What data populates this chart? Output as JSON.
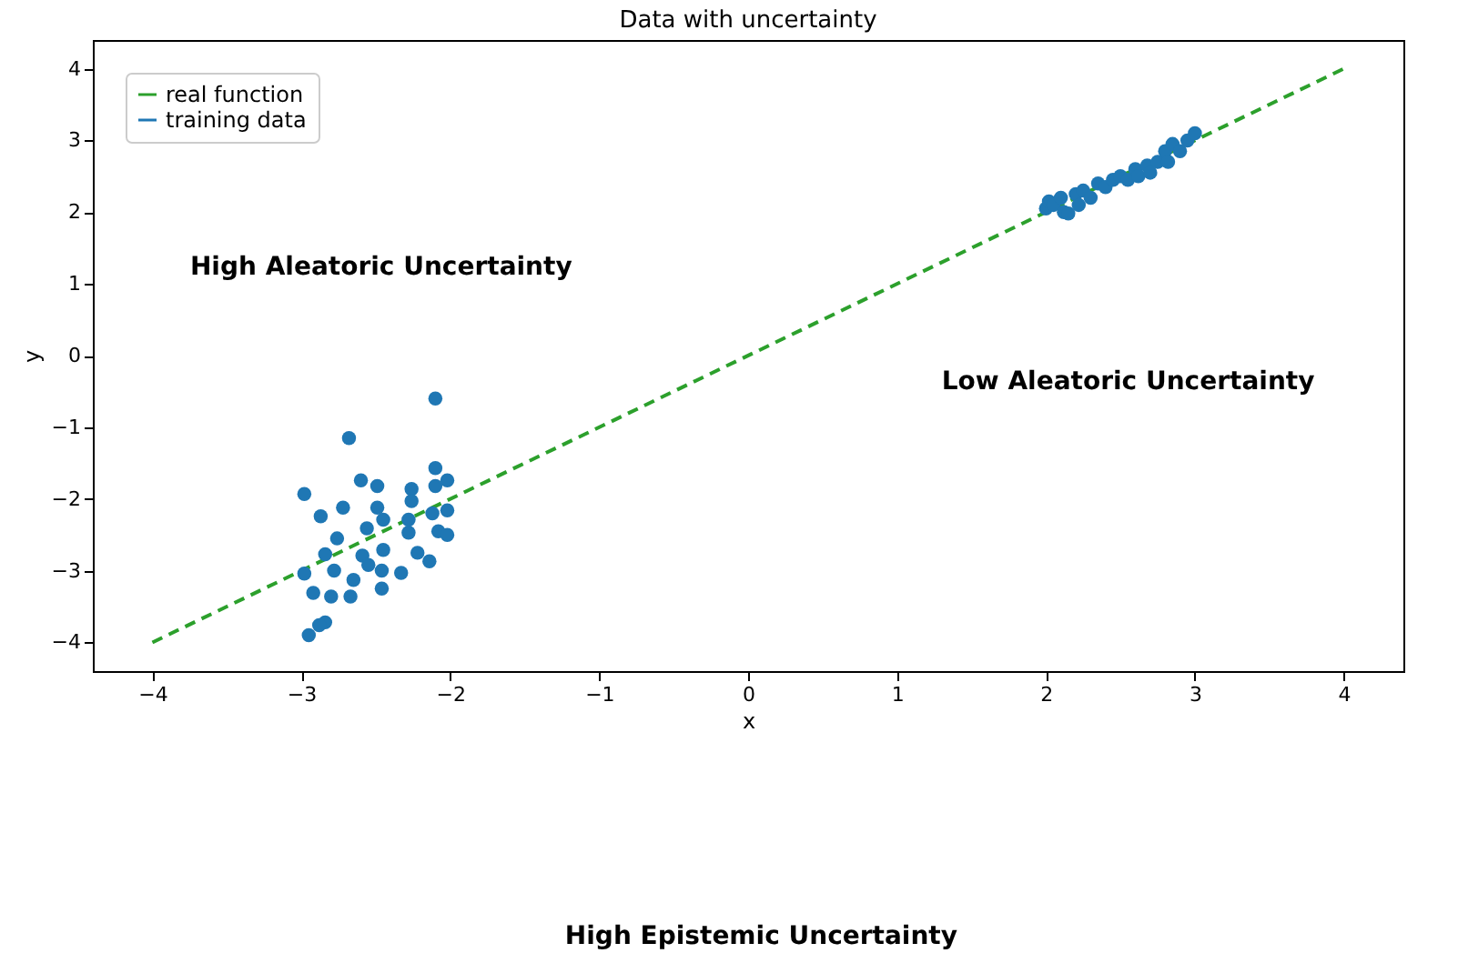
{
  "chart_data": {
    "type": "scatter",
    "title": "Data with uncertainty",
    "xlabel": "x",
    "ylabel": "y",
    "xlim": [
      -4.4,
      4.4
    ],
    "ylim": [
      -4.4,
      4.4
    ],
    "xticks": [
      -4,
      -3,
      -2,
      -1,
      0,
      1,
      2,
      3,
      4
    ],
    "yticks": [
      -4,
      -3,
      -2,
      -1,
      0,
      1,
      2,
      3,
      4
    ],
    "grid": false,
    "legend": "top left",
    "annotations": [
      "High Aleatoric Uncertainty",
      "Low Aleatoric Uncertainty",
      "High Epistemic Uncertainty"
    ],
    "series": [
      {
        "name": "real function",
        "type": "line",
        "color": "#2ca02c",
        "line_style": "dashed",
        "x": [
          -4,
          4
        ],
        "values": [
          -4,
          4
        ]
      },
      {
        "name": "training data",
        "color": "#1f77b4",
        "marker": "circle",
        "x": [
          -2.1,
          -2.68,
          -2.98,
          -2.6,
          -2.49,
          -2.26,
          -2.1,
          -2.1,
          -2.02,
          -2.72,
          -2.87,
          -2.49,
          -2.45,
          -2.26,
          -2.12,
          -2.02,
          -2.28,
          -2.08,
          -2.02,
          -2.56,
          -2.76,
          -2.28,
          -2.84,
          -2.59,
          -2.45,
          -2.22,
          -2.14,
          -2.55,
          -2.78,
          -2.46,
          -2.33,
          -2.98,
          -2.65,
          -2.92,
          -2.8,
          -2.67,
          -2.46,
          -2.84,
          -2.88,
          -2.95,
          2.0,
          2.02,
          2.05,
          2.1,
          2.12,
          2.15,
          2.2,
          2.22,
          2.25,
          2.3,
          2.35,
          2.4,
          2.45,
          2.5,
          2.55,
          2.6,
          2.62,
          2.68,
          2.7,
          2.75,
          2.8,
          2.82,
          2.85,
          2.9,
          2.95,
          3.0
        ],
        "values": [
          -0.6,
          -1.15,
          -1.93,
          -1.74,
          -1.82,
          -1.86,
          -1.57,
          -1.82,
          -1.74,
          -2.12,
          -2.24,
          -2.12,
          -2.29,
          -2.03,
          -2.2,
          -2.16,
          -2.29,
          -2.45,
          -2.5,
          -2.41,
          -2.55,
          -2.47,
          -2.77,
          -2.79,
          -2.71,
          -2.75,
          -2.87,
          -2.92,
          -3.0,
          -3.0,
          -3.03,
          -3.04,
          -3.13,
          -3.31,
          -3.36,
          -3.36,
          -3.25,
          -3.72,
          -3.76,
          -3.9,
          2.05,
          2.15,
          2.1,
          2.2,
          2.0,
          1.98,
          2.25,
          2.1,
          2.3,
          2.2,
          2.4,
          2.35,
          2.45,
          2.5,
          2.45,
          2.6,
          2.5,
          2.65,
          2.55,
          2.7,
          2.85,
          2.7,
          2.95,
          2.85,
          3.0,
          3.1
        ]
      }
    ]
  }
}
